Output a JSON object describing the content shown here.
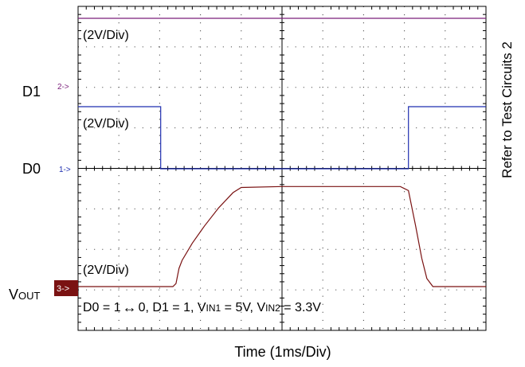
{
  "chart_data": {
    "type": "line",
    "title": "",
    "xlabel": "Time (1ms/Div)",
    "side_label": "Refer to Test Circuits 2",
    "x_divisions": 10,
    "y_divisions": 8,
    "grid": true,
    "channels": [
      {
        "name": "D1",
        "marker": "2->",
        "scale": "(2V/Div)",
        "color": "#7a1e7a",
        "points": [
          [
            0,
            4.5
          ],
          [
            10,
            4.5
          ]
        ]
      },
      {
        "name": "D0",
        "marker": "1->",
        "scale": "(2V/Div)",
        "color": "#1f2fb0",
        "points": [
          [
            0,
            2.6
          ],
          [
            4.05,
            2.6
          ],
          [
            4.05,
            2.0
          ],
          [
            16.2,
            2.0
          ],
          [
            16.2,
            2.6
          ],
          [
            20,
            2.6
          ]
        ]
      },
      {
        "name": "VOUT",
        "label_main": "V",
        "label_sub": "OUT",
        "marker": "3->",
        "scale": "(2V/Div)",
        "color": "#7a1212",
        "points": [
          [
            0,
            0.0
          ],
          [
            4.65,
            0.0
          ],
          [
            4.8,
            0.03
          ],
          [
            4.95,
            0.18
          ],
          [
            5.1,
            0.26
          ],
          [
            5.6,
            0.43
          ],
          [
            6.2,
            0.6
          ],
          [
            6.9,
            0.78
          ],
          [
            7.6,
            0.93
          ],
          [
            8.0,
            0.98
          ],
          [
            10.0,
            0.99
          ],
          [
            15.8,
            0.99
          ],
          [
            16.2,
            0.95
          ],
          [
            16.55,
            0.6
          ],
          [
            16.85,
            0.28
          ],
          [
            17.1,
            0.08
          ],
          [
            17.4,
            0.0
          ],
          [
            20,
            0.0
          ]
        ]
      }
    ],
    "condition": {
      "p1": "D0 =  1",
      "arrow": "↔",
      "p2": "0, D1 = 1, V",
      "sub1": "IN1",
      "p3": " = 5V, V",
      "sub2": "IN2",
      "p4": " = 3.3V"
    }
  }
}
